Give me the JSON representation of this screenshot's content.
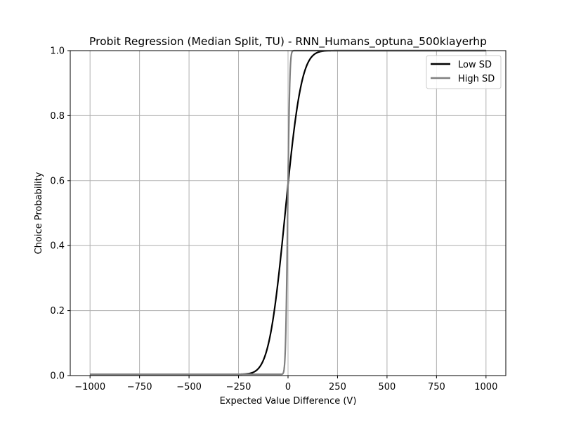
{
  "chart_data": {
    "type": "line",
    "title": "Probit Regression (Median Split, TU) - RNN_Humans_optuna_500klayerhp",
    "xlabel": "Expected Value Difference (V)",
    "ylabel": "Choice Probability",
    "xlim": [
      -1100,
      1100
    ],
    "ylim": [
      0,
      1
    ],
    "xticks": [
      -1000,
      -750,
      -500,
      -250,
      0,
      250,
      500,
      750,
      1000
    ],
    "xtick_labels": [
      "−1000",
      "−750",
      "−500",
      "−250",
      "0",
      "250",
      "500",
      "750",
      "1000"
    ],
    "yticks": [
      0,
      0.2,
      0.4,
      0.6,
      0.8,
      1.0
    ],
    "ytick_labels": [
      "0.0",
      "0.2",
      "0.4",
      "0.6",
      "0.8",
      "1.0"
    ],
    "grid": true,
    "legend_position": "top-right",
    "x_range": [
      -1000,
      1000
    ],
    "series": [
      {
        "name": "Low SD",
        "color": "#000000",
        "model": "probit",
        "intercept": 0.22,
        "slope": 0.0155,
        "floor": 0.004
      },
      {
        "name": "High SD",
        "color": "#808080",
        "model": "probit",
        "intercept": 0.22,
        "slope": 0.12,
        "floor": 0.004
      }
    ]
  }
}
